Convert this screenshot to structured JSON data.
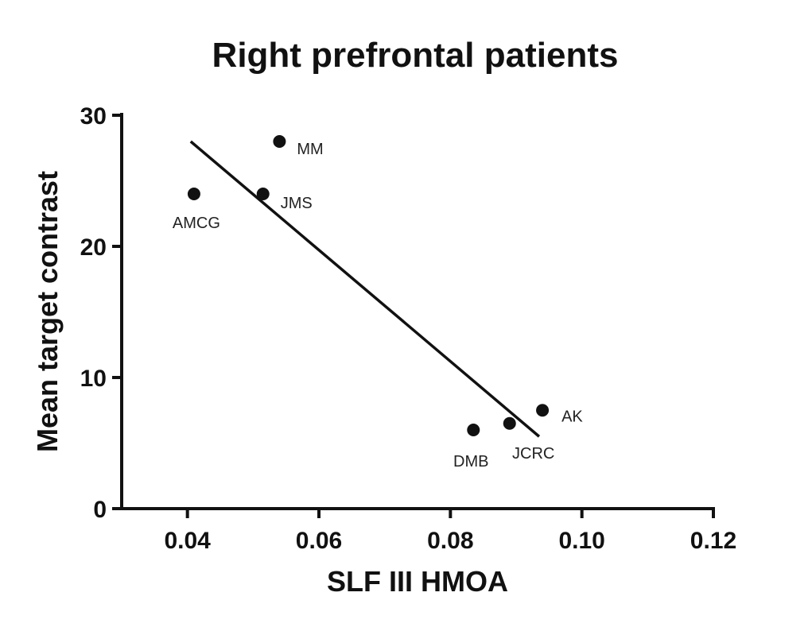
{
  "chart_data": {
    "type": "scatter",
    "title": "Right prefrontal patients",
    "xlabel": "SLF III HMOA",
    "ylabel": "Mean target contrast",
    "xlim": [
      0.03,
      0.12
    ],
    "ylim": [
      0,
      30
    ],
    "xticks": [
      0.04,
      0.06,
      0.08,
      0.1,
      0.12
    ],
    "xtick_labels": [
      "0.04",
      "0.06",
      "0.08",
      "0.10",
      "0.12"
    ],
    "yticks": [
      0,
      10,
      20,
      30
    ],
    "ytick_labels": [
      "0",
      "10",
      "20",
      "30"
    ],
    "grid": false,
    "points": [
      {
        "label": "AMCG",
        "x": 0.041,
        "y": 24.0
      },
      {
        "label": "JMS",
        "x": 0.0515,
        "y": 24.0
      },
      {
        "label": "MM",
        "x": 0.054,
        "y": 28.0
      },
      {
        "label": "DMB",
        "x": 0.0835,
        "y": 6.0
      },
      {
        "label": "JCRC",
        "x": 0.089,
        "y": 6.5
      },
      {
        "label": "AK",
        "x": 0.094,
        "y": 7.5
      }
    ],
    "fit_line": {
      "x": [
        0.0405,
        0.0935
      ],
      "y": [
        28.0,
        5.5
      ]
    },
    "colors": {
      "points": "#111111",
      "line": "#111111",
      "axis": "#111111"
    }
  }
}
